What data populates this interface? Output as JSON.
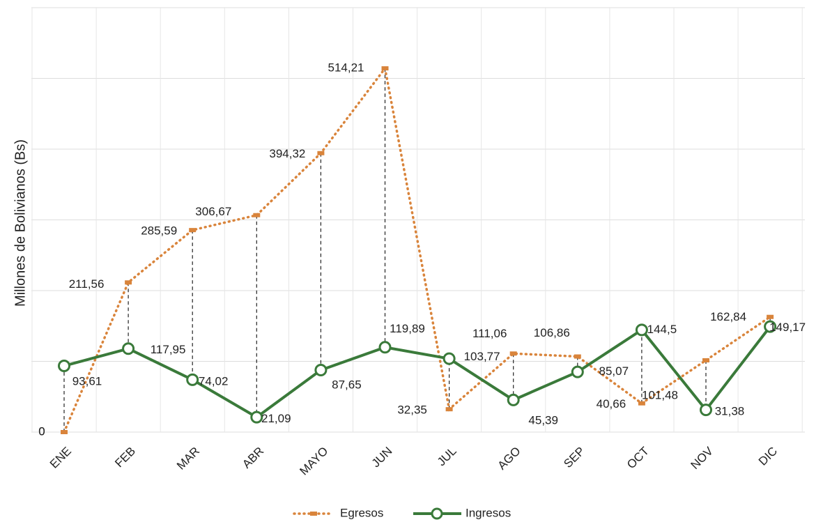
{
  "chart_data": {
    "type": "line",
    "y_label": "Millones de Bolivianos (Bs)",
    "categories": [
      "ENE",
      "FEB",
      "MAR",
      "ABR",
      "MAYO",
      "JUN",
      "JUL",
      "AGO",
      "SEP",
      "OCT",
      "NOV",
      "DIC"
    ],
    "series": [
      {
        "name": "Egresos",
        "color": "#d9843b",
        "values": [
          0,
          211.56,
          285.59,
          306.67,
          394.32,
          514.21,
          32.35,
          111.06,
          106.86,
          40.66,
          101.48,
          162.84
        ],
        "value_labels": [
          "0",
          "211,56",
          "285,59",
          "306,67",
          "394,32",
          "514,21",
          "32,35",
          "111,06",
          "106,86",
          "40,66",
          "101,48",
          "162,84"
        ]
      },
      {
        "name": "Ingresos",
        "color": "#3a7a3a",
        "values": [
          93.61,
          117.95,
          74.02,
          21.09,
          87.65,
          119.89,
          103.77,
          45.39,
          85.07,
          144.5,
          31.38,
          149.17
        ],
        "value_labels": [
          "93,61",
          "117,95",
          "74,02",
          "21,09",
          "87,65",
          "119,89",
          "103,77",
          "45,39",
          "85,07",
          "144,5",
          "31,38",
          "149,17"
        ]
      }
    ],
    "ylim": [
      0,
      600
    ],
    "yticks": [
      0
    ],
    "ygrid": [
      0,
      100,
      200,
      300,
      400,
      500,
      600
    ],
    "grid": true,
    "legend": "bottom"
  }
}
